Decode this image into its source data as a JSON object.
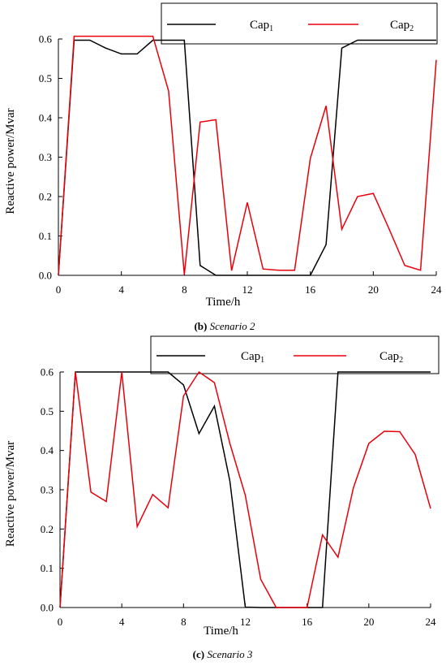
{
  "chart_data": [
    {
      "type": "line",
      "caption_prefix": "(b)",
      "caption_text": "Scenario 2",
      "xlabel": "Time/h",
      "ylabel": "Reactive power/Mvar",
      "xlim": [
        0,
        24
      ],
      "ylim": [
        0,
        0.6
      ],
      "xticks": [
        "0",
        "4",
        "8",
        "12",
        "16",
        "20",
        "24"
      ],
      "yticks": [
        "0.0",
        "0.1",
        "0.2",
        "0.3",
        "0.4",
        "0.5",
        "0.6"
      ],
      "grid": false,
      "legend_position": "top",
      "x": [
        0,
        1,
        2,
        3,
        4,
        5,
        6,
        7,
        8,
        9,
        10,
        11,
        12,
        13,
        14,
        15,
        16,
        17,
        18,
        19,
        20,
        21,
        22,
        23,
        24
      ],
      "series": [
        {
          "name": "Cap",
          "subscript": "1",
          "color": "#000000",
          "values": [
            0,
            0.597,
            0.597,
            0.577,
            0.562,
            0.562,
            0.597,
            0.597,
            0.597,
            0.025,
            0,
            0,
            0,
            0,
            0,
            0,
            0,
            0.078,
            0.577,
            0.597,
            0.597,
            0.597,
            0.597,
            0.597,
            0.597
          ]
        },
        {
          "name": "Cap",
          "subscript": "2",
          "color": "#e8000b",
          "values": [
            0,
            0.607,
            0.607,
            0.607,
            0.607,
            0.607,
            0.607,
            0.468,
            0.002,
            0.389,
            0.395,
            0.012,
            0.185,
            0.016,
            0.013,
            0.013,
            0.297,
            0.43,
            0.117,
            0.2,
            0.208,
            0.118,
            0.025,
            0.013,
            0.547
          ]
        }
      ]
    },
    {
      "type": "line",
      "caption_prefix": "(c)",
      "caption_text": "Scenario 3",
      "xlabel": "Time/h",
      "ylabel": "Reactive power/Mvar",
      "xlim": [
        0,
        24
      ],
      "ylim": [
        0,
        0.6
      ],
      "xticks": [
        "0",
        "4",
        "8",
        "12",
        "16",
        "20",
        "24"
      ],
      "yticks": [
        "0.0",
        "0.1",
        "0.2",
        "0.3",
        "0.4",
        "0.5",
        "0.6"
      ],
      "grid": false,
      "legend_position": "top",
      "x": [
        0,
        1,
        2,
        3,
        4,
        5,
        6,
        7,
        8,
        9,
        10,
        11,
        12,
        13,
        14,
        15,
        16,
        17,
        18,
        19,
        20,
        21,
        22,
        23,
        24
      ],
      "series": [
        {
          "name": "Cap",
          "subscript": "1",
          "color": "#000000",
          "values": [
            0,
            0.6,
            0.6,
            0.6,
            0.6,
            0.6,
            0.6,
            0.6,
            0.567,
            0.443,
            0.513,
            0.322,
            0.001,
            0,
            0,
            0,
            0,
            0,
            0.6,
            0.6,
            0.6,
            0.6,
            0.6,
            0.6,
            0.6
          ]
        },
        {
          "name": "Cap",
          "subscript": "2",
          "color": "#e8000b",
          "values": [
            0,
            0.6,
            0.294,
            0.27,
            0.6,
            0.206,
            0.288,
            0.254,
            0.539,
            0.6,
            0.573,
            0.418,
            0.286,
            0.072,
            0,
            0,
            0,
            0.185,
            0.128,
            0.305,
            0.418,
            0.449,
            0.448,
            0.39,
            0.252
          ]
        }
      ]
    }
  ]
}
